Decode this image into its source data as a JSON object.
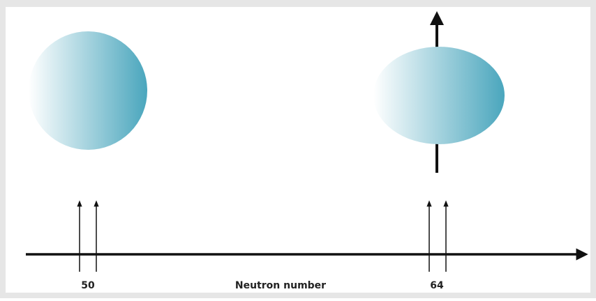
{
  "axis": {
    "label": "Neutron number",
    "ticks": [
      {
        "label": "50"
      },
      {
        "label": "64"
      }
    ]
  }
}
